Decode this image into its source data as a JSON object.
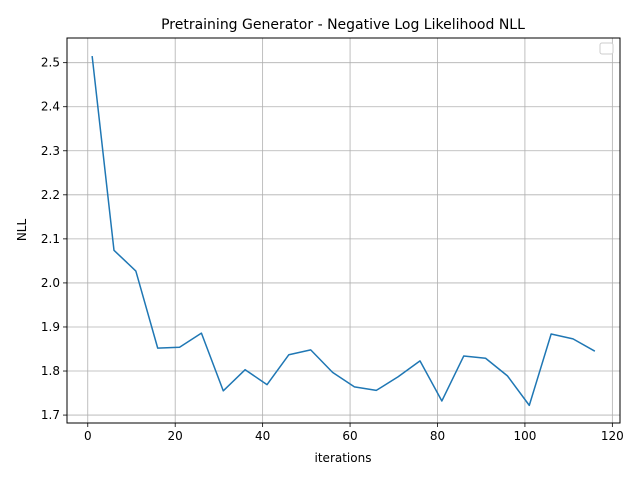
{
  "chart_data": {
    "type": "line",
    "title": "Pretraining Generator - Negative Log Likelihood NLL",
    "xlabel": "iterations",
    "ylabel": "NLL",
    "xlim": [
      -4.75,
      121.75
    ],
    "ylim": [
      1.682,
      2.556
    ],
    "xticks": [
      0,
      20,
      40,
      60,
      80,
      100,
      120
    ],
    "yticks": [
      1.7,
      1.8,
      1.9,
      2.0,
      2.1,
      2.2,
      2.3,
      2.4,
      2.5
    ],
    "ytick_labels": [
      "1.7",
      "1.8",
      "1.9",
      "2.0",
      "2.1",
      "2.2",
      "2.3",
      "2.4",
      "2.5"
    ],
    "grid": true,
    "legend": "top-right (empty)",
    "series": [
      {
        "color": "#1f77b4",
        "x": [
          1,
          6,
          11,
          16,
          21,
          26,
          31,
          36,
          41,
          46,
          51,
          56,
          61,
          66,
          71,
          76,
          81,
          86,
          91,
          96,
          101,
          106,
          111,
          116
        ],
        "y": [
          2.515,
          2.074,
          2.027,
          1.852,
          1.854,
          1.886,
          1.755,
          1.803,
          1.769,
          1.837,
          1.848,
          1.797,
          1.764,
          1.756,
          1.787,
          1.823,
          1.732,
          1.834,
          1.829,
          1.789,
          1.722,
          1.884,
          1.873,
          1.845
        ]
      }
    ]
  }
}
